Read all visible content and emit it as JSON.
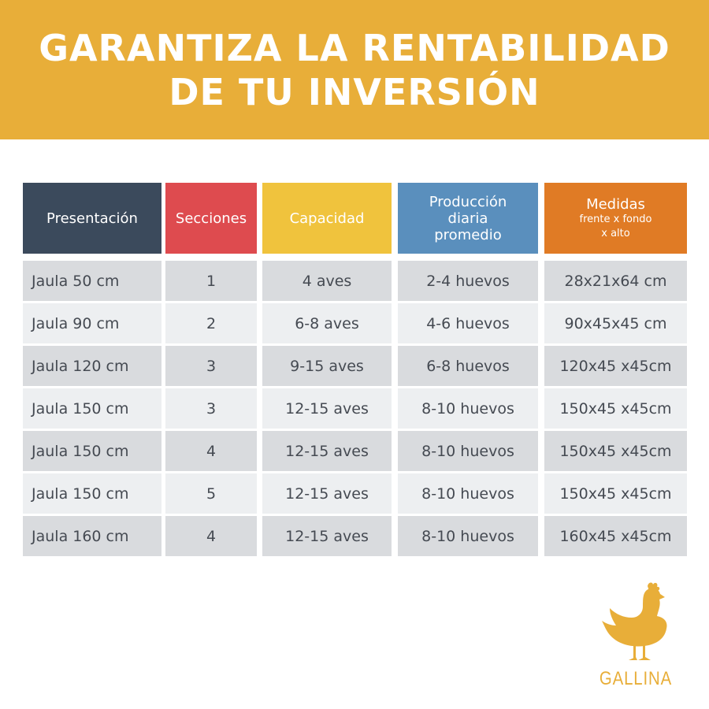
{
  "banner": {
    "line1": "GARANTIZA LA RENTABILIDAD",
    "line2": "DE TU INVERSIÓN"
  },
  "colors": {
    "banner": "#e8ae39",
    "presentacion": "#3b4a5c",
    "secciones": "#de4b4f",
    "capacidad": "#f0c33d",
    "produccion": "#5a8fbd",
    "medidas": "#e07b25"
  },
  "table": {
    "headers": {
      "presentacion": "Presentación",
      "secciones": "Secciones",
      "capacidad": "Capacidad",
      "produccion_1": "Producción",
      "produccion_2": "diaria",
      "produccion_3": "promedio",
      "medidas": "Medidas",
      "medidas_sub_1": "frente x fondo",
      "medidas_sub_2": "x alto"
    },
    "rows": [
      {
        "presentacion": "Jaula 50 cm",
        "secciones": "1",
        "capacidad": "4 aves",
        "produccion": "2-4 huevos",
        "medidas": "28x21x64 cm"
      },
      {
        "presentacion": "Jaula 90 cm",
        "secciones": "2",
        "capacidad": "6-8 aves",
        "produccion": "4-6 huevos",
        "medidas": "90x45x45 cm"
      },
      {
        "presentacion": "Jaula 120 cm",
        "secciones": "3",
        "capacidad": "9-15 aves",
        "produccion": "6-8 huevos",
        "medidas": "120x45 x45cm"
      },
      {
        "presentacion": "Jaula 150 cm",
        "secciones": "3",
        "capacidad": "12-15 aves",
        "produccion": "8-10 huevos",
        "medidas": "150x45 x45cm"
      },
      {
        "presentacion": "Jaula 150 cm",
        "secciones": "4",
        "capacidad": "12-15 aves",
        "produccion": "8-10 huevos",
        "medidas": "150x45 x45cm"
      },
      {
        "presentacion": "Jaula 150 cm",
        "secciones": "5",
        "capacidad": "12-15 aves",
        "produccion": "8-10 huevos",
        "medidas": "150x45 x45cm"
      },
      {
        "presentacion": "Jaula 160 cm",
        "secciones": "4",
        "capacidad": "12-15 aves",
        "produccion": "8-10 huevos",
        "medidas": "160x45 x45cm"
      }
    ]
  },
  "logo": {
    "icon": "hen-icon",
    "name": "GALLINA"
  }
}
